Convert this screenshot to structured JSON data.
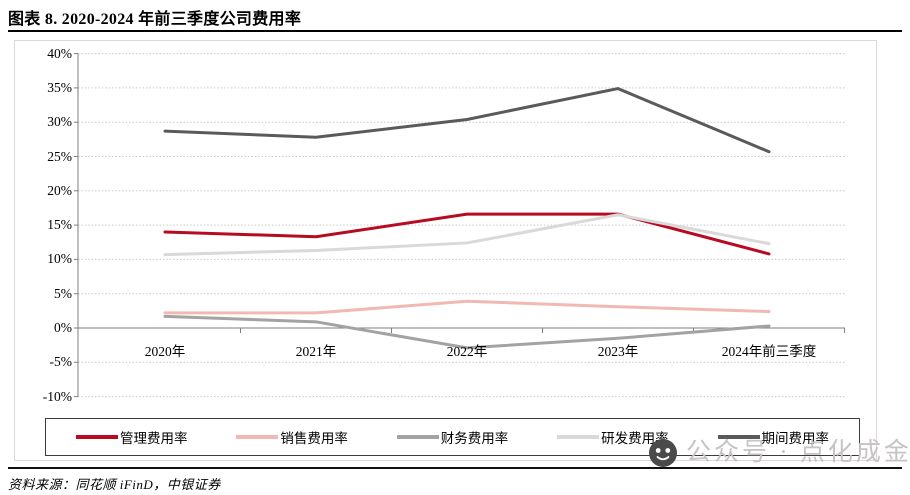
{
  "title": "图表 8. 2020-2024 年前三季度公司费用率",
  "source": "资料来源：同花顺 iFinD，中银证券",
  "watermark": "公众号 · 点化成金",
  "chart_data": {
    "type": "line",
    "title": "2020-2024 年前三季度公司费用率",
    "xlabel": "",
    "ylabel": "",
    "categories": [
      "2020年",
      "2021年",
      "2022年",
      "2023年",
      "2024年前三季度"
    ],
    "series": [
      {
        "name": "管理费用率",
        "color": "#b80b22",
        "values": [
          14.0,
          13.3,
          16.6,
          16.6,
          10.8
        ]
      },
      {
        "name": "销售费用率",
        "color": "#f2b8b4",
        "values": [
          2.2,
          2.2,
          3.9,
          3.1,
          2.4
        ]
      },
      {
        "name": "财务费用率",
        "color": "#a3a3a3",
        "values": [
          1.7,
          0.9,
          -2.9,
          -1.5,
          0.3
        ]
      },
      {
        "name": "研发费用率",
        "color": "#d9d9d9",
        "values": [
          10.7,
          11.3,
          12.4,
          16.5,
          12.3
        ]
      },
      {
        "name": "期间费用率",
        "color": "#5a5a5a",
        "values": [
          28.7,
          27.8,
          30.4,
          34.9,
          25.7
        ]
      }
    ],
    "ylim": [
      -10,
      40
    ],
    "ytick_step": 5,
    "yticks": [
      "40%",
      "35%",
      "30%",
      "25%",
      "20%",
      "15%",
      "10%",
      "5%",
      "0%",
      "-5%",
      "-10%"
    ],
    "grid": "horizontal-dotted",
    "legend_position": "bottom-boxed"
  }
}
